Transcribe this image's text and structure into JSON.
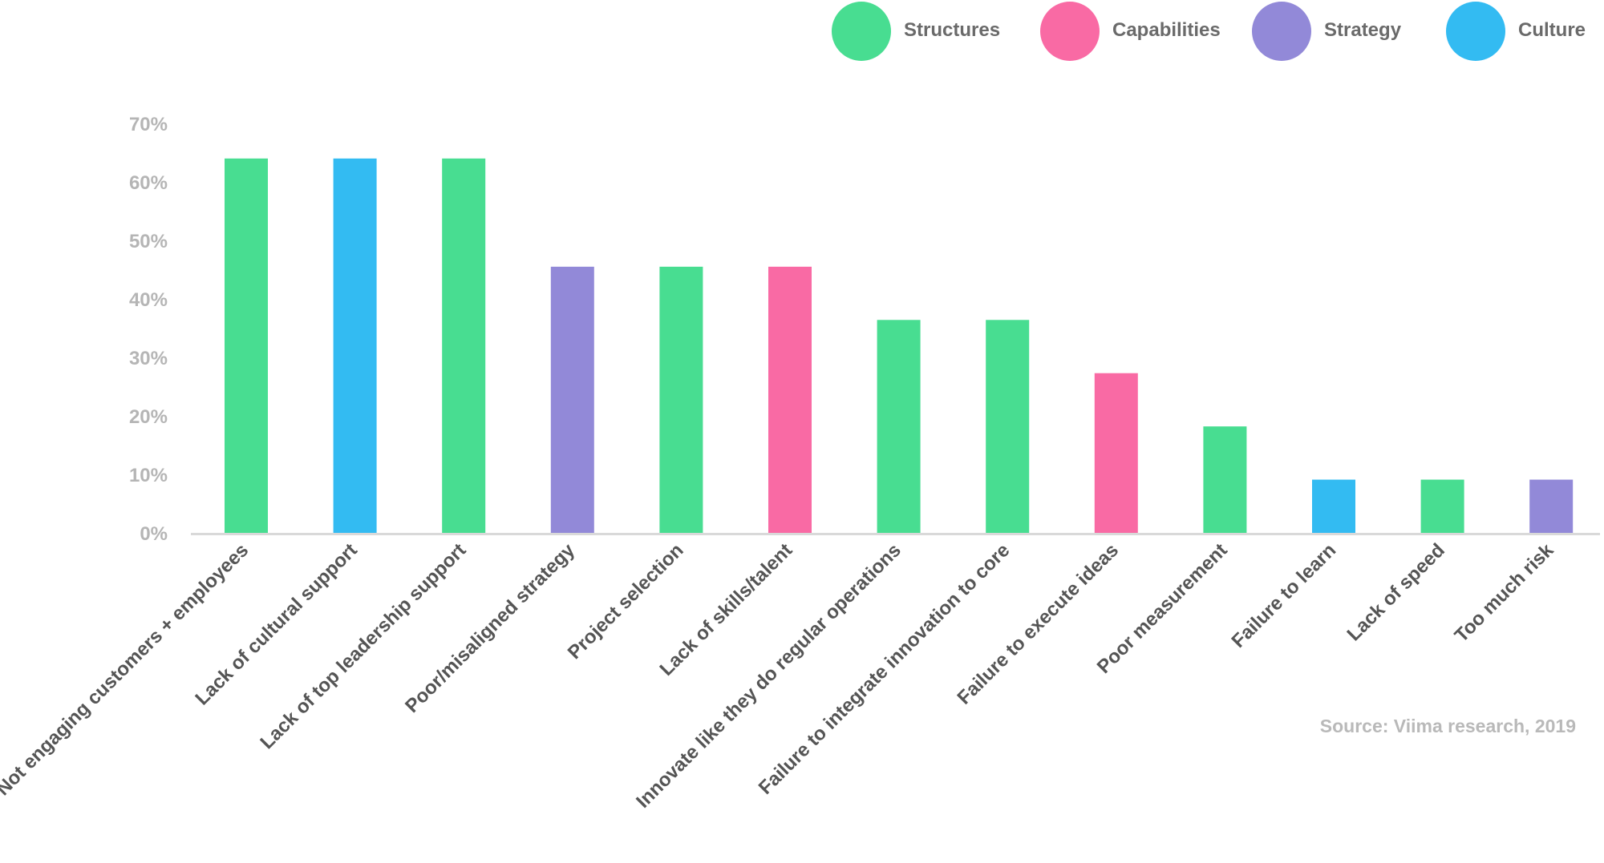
{
  "legend": [
    {
      "name": "Structures",
      "color": "#48dd91"
    },
    {
      "name": "Capabilities",
      "color": "#f96aa4"
    },
    {
      "name": "Strategy",
      "color": "#9289d8"
    },
    {
      "name": "Culture",
      "color": "#33bbf2"
    }
  ],
  "source": "Source: Viima research, 2019",
  "chart_data": {
    "type": "bar",
    "categories": [
      "Not engaging customers + employees",
      "Lack of cultural support",
      "Lack of top leadership support",
      "Poor/misaligned strategy",
      "Project selection",
      "Lack of skills/talent",
      "Innovate like they do regular operations",
      "Failure to integrate innovation to core",
      "Failure to execute ideas",
      "Poor measurement",
      "Failure to learn",
      "Lack of speed",
      "Too  much risk"
    ],
    "values": [
      64,
      64,
      64,
      45.5,
      45.5,
      45.5,
      36.4,
      36.4,
      27.3,
      18.2,
      9.1,
      9.1,
      9.1
    ],
    "groups": [
      "Structures",
      "Culture",
      "Structures",
      "Strategy",
      "Structures",
      "Capabilities",
      "Structures",
      "Structures",
      "Capabilities",
      "Structures",
      "Culture",
      "Structures",
      "Strategy"
    ],
    "yticks": [
      "0%",
      "10%",
      "20%",
      "30%",
      "40%",
      "50%",
      "60%",
      "70%"
    ],
    "ylim": [
      0,
      70
    ],
    "legend_position": "top-right",
    "grid": false,
    "title": "",
    "xlabel": "",
    "ylabel": ""
  }
}
